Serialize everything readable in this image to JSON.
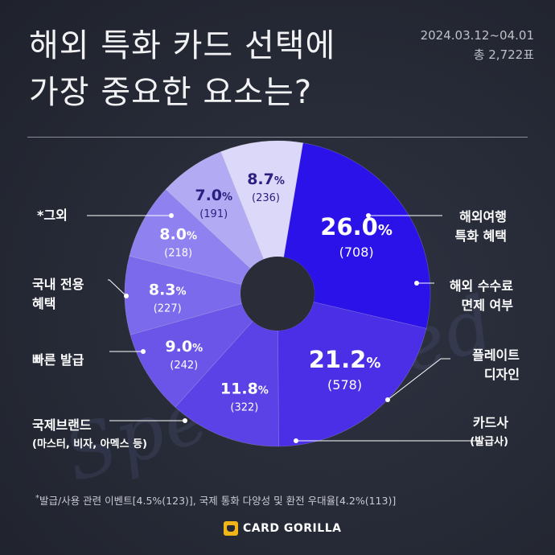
{
  "header": {
    "title": "해외 특화 카드 선택에\n가장 중요한 요소는?",
    "date_range": "2024.03.12~04.01",
    "total_votes": "총 2,722표"
  },
  "chart_data": {
    "type": "pie",
    "subtype": "donut",
    "title": "해외 특화 카드 선택에 가장 중요한 요소는?",
    "total": 2722,
    "slices": [
      {
        "label": "해외여행 특화 혜택",
        "percent": 26.0,
        "count": 708,
        "color": "#2a12e8"
      },
      {
        "label": "해외 수수료 면제 여부",
        "percent": 21.2,
        "count": 578,
        "color": "#4a2fe6"
      },
      {
        "label": "플레이트 디자인",
        "percent": 11.8,
        "count": 322,
        "color": "#5b42e6"
      },
      {
        "label": "카드사 (발급사)",
        "percent": 9.0,
        "count": 242,
        "color": "#6a55e8"
      },
      {
        "label": "국제브랜드 (마스터, 비자, 아멕스 등)",
        "percent": 8.3,
        "count": 227,
        "color": "#7b6aeb"
      },
      {
        "label": "빠른 발급",
        "percent": 8.0,
        "count": 218,
        "color": "#8f81ef"
      },
      {
        "label": "국내 전용 혜택",
        "percent": 7.0,
        "count": 191,
        "color": "#b3aaf4"
      },
      {
        "label": "*그외",
        "percent": 8.7,
        "count": 236,
        "color": "#dcd8fa"
      }
    ],
    "legend_position": "outside labels with leader lines"
  },
  "labels": {
    "travel": [
      "해외여행",
      "특화 혜택"
    ],
    "fee": [
      "해외 수수료",
      "면제 여부"
    ],
    "plate": [
      "플레이트",
      "디자인"
    ],
    "issuer": [
      "카드사",
      "(발급사)"
    ],
    "brand": [
      "국제브랜드",
      "(마스터, 비자, 아멕스 등)"
    ],
    "fast": [
      "빠른 발급"
    ],
    "domestic": [
      "국내 전용",
      "혜택"
    ],
    "other": [
      "*그외"
    ]
  },
  "footnote": "발급/사용 관련 이벤트[4.5%(123)], 국제 통화 다양성 및 환전 우대율[4.2%(113)]",
  "footnote_mark": "*",
  "brand": "CARD GORILLA",
  "watermark": "Specialized"
}
